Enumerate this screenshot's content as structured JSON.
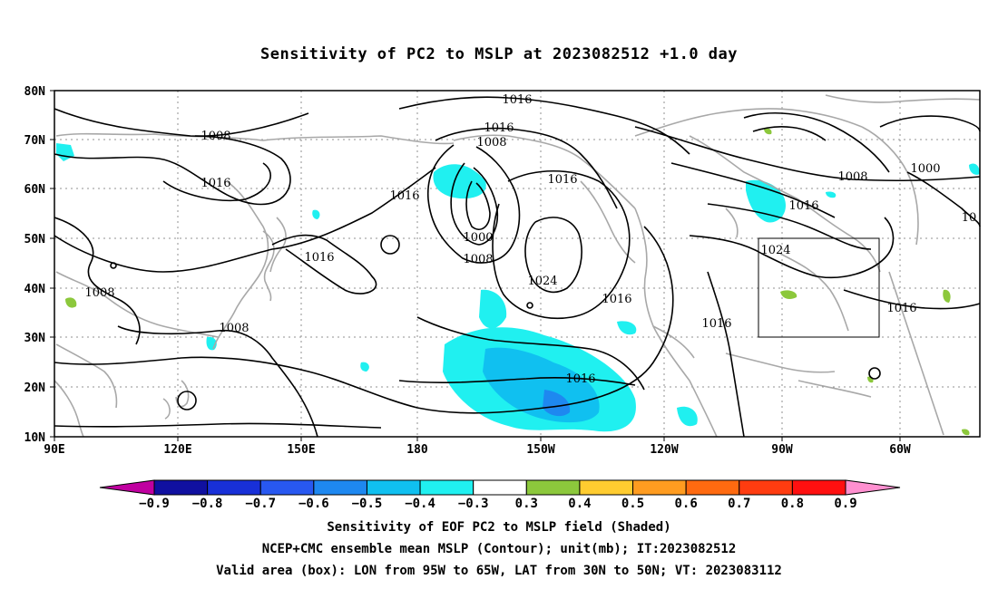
{
  "title": "Sensitivity of PC2 to MSLP at 2023082512 +1.0 day",
  "map": {
    "lat_labels": [
      "80N",
      "70N",
      "60N",
      "50N",
      "40N",
      "30N",
      "20N",
      "10N"
    ],
    "lon_labels": [
      "90E",
      "120E",
      "150E",
      "180",
      "150W",
      "120W",
      "90W",
      "60W"
    ],
    "contour_labels": [
      "1016",
      "1016",
      "1008",
      "1008",
      "1016",
      "1016",
      "1016",
      "1016",
      "1008",
      "1016",
      "1000",
      "1008",
      "1024",
      "1016",
      "1016",
      "1000",
      "1008",
      "1016",
      "10",
      "1024",
      "1016",
      "1008",
      "1016"
    ],
    "valid_box": {
      "lon_range": [
        "95W",
        "65W"
      ],
      "lat_range": [
        "30N",
        "50N"
      ]
    }
  },
  "colorbar": {
    "labels": [
      "−0.9",
      "−0.8",
      "−0.7",
      "−0.6",
      "−0.5",
      "−0.4",
      "−0.3",
      "0.3",
      "0.4",
      "0.5",
      "0.6",
      "0.7",
      "0.8",
      "0.9"
    ],
    "colors": [
      "#c000a0",
      "#1010a0",
      "#1830d8",
      "#2858f0",
      "#1e88f0",
      "#10c0f0",
      "#20f0f0",
      "#ffffff",
      "#8cc83c",
      "#ffcc30",
      "#ff9c20",
      "#ff6a10",
      "#ff3c10",
      "#ff1010",
      "#ff90d0"
    ]
  },
  "footer": {
    "line1": "Sensitivity of EOF PC2 to MSLP field (Shaded)",
    "line2": "NCEP+CMC ensemble mean MSLP (Contour); unit(mb); IT:2023082512",
    "line3": "Valid area (box): LON from 95W to 65W, LAT from 30N to 50N; VT: 2023083112"
  }
}
